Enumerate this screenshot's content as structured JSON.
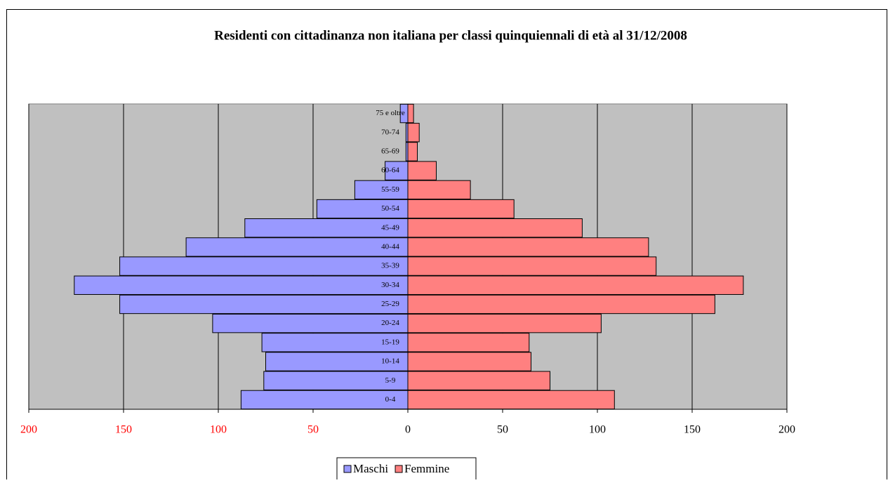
{
  "chart_data": {
    "type": "pyramid",
    "title": "Residenti con cittadinanza non italiana per classi quinquiennali di età al 31/12/2008",
    "categories": [
      "0-4",
      "5-9",
      "10-14",
      "15-19",
      "20-24",
      "25-29",
      "30-34",
      "35-39",
      "40-44",
      "45-49",
      "50-54",
      "55-59",
      "60-64",
      "65-69",
      "70-74",
      "75 e oltre"
    ],
    "series": [
      {
        "name": "Maschi",
        "color": "#9999ff",
        "values": [
          -88,
          -76,
          -75,
          -77,
          -103,
          -152,
          -176,
          -152,
          -117,
          -86,
          -48,
          -28,
          -12,
          -1,
          -1,
          -4
        ]
      },
      {
        "name": "Femmine",
        "color": "#ff8080",
        "values": [
          109,
          75,
          65,
          64,
          102,
          162,
          177,
          131,
          127,
          92,
          56,
          33,
          15,
          5,
          6,
          3
        ]
      }
    ],
    "xlim": [
      -200,
      200
    ],
    "xticks": [
      {
        "value": -200,
        "label": "200"
      },
      {
        "value": -150,
        "label": "150"
      },
      {
        "value": -100,
        "label": "100"
      },
      {
        "value": -50,
        "label": "50"
      },
      0,
      50,
      100,
      150,
      200
    ],
    "grid": true,
    "legend": "bottom"
  }
}
